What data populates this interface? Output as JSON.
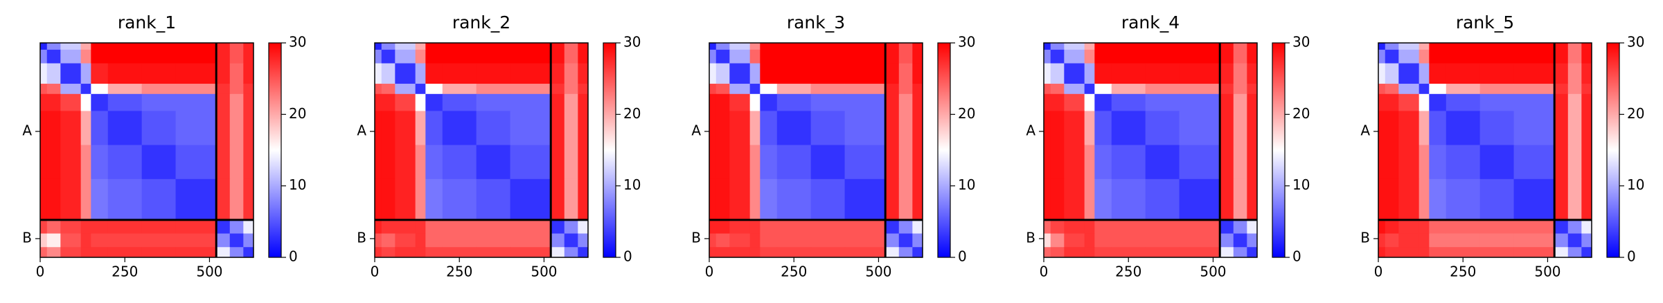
{
  "chart_data": [
    {
      "type": "heatmap",
      "title": "rank_1",
      "cmap": "bwr",
      "bins": [
        0,
        20,
        60,
        120,
        150,
        200,
        300,
        400,
        520,
        560,
        600,
        630
      ],
      "matrix": [
        [
          2,
          8,
          12,
          20,
          30,
          30,
          30,
          30,
          28,
          25,
          28
        ],
        [
          8,
          3,
          10,
          22,
          30,
          30,
          30,
          30,
          28,
          25,
          28
        ],
        [
          14,
          12,
          3,
          10,
          28,
          29,
          29,
          29,
          28,
          24,
          28
        ],
        [
          25,
          24,
          10,
          3,
          15,
          20,
          22,
          22,
          27,
          24,
          27
        ],
        [
          28,
          28,
          26,
          15,
          3,
          5,
          6,
          6,
          27,
          22,
          27
        ],
        [
          29,
          29,
          28,
          20,
          5,
          3,
          5,
          6,
          27,
          22,
          27
        ],
        [
          29,
          29,
          28,
          22,
          6,
          5,
          3,
          5,
          27,
          22,
          27
        ],
        [
          29,
          29,
          28,
          22,
          7,
          6,
          5,
          3,
          27,
          22,
          27
        ],
        [
          26,
          24,
          26,
          27,
          27,
          27,
          27,
          27,
          3,
          8,
          14
        ],
        [
          18,
          16,
          25,
          27,
          26,
          26,
          26,
          26,
          8,
          3,
          8
        ],
        [
          24,
          22,
          26,
          27,
          27,
          27,
          27,
          27,
          14,
          8,
          3
        ]
      ],
      "xlim": [
        0,
        630
      ],
      "ylim": [
        0,
        630
      ],
      "yaxis_inverted": true,
      "xticks": [
        0,
        250,
        500
      ],
      "yticks": [
        {
          "value": 260,
          "label": "A"
        },
        {
          "value": 575,
          "label": "B"
        }
      ],
      "chain_breaks": [
        520
      ],
      "clim": [
        0,
        30
      ],
      "cticks": [
        0,
        10,
        20,
        30
      ]
    },
    {
      "type": "heatmap",
      "title": "rank_2",
      "cmap": "bwr",
      "bins": [
        0,
        20,
        60,
        120,
        150,
        200,
        300,
        400,
        520,
        560,
        600,
        630
      ],
      "matrix": [
        [
          2,
          8,
          12,
          20,
          30,
          30,
          30,
          30,
          29,
          24,
          29
        ],
        [
          8,
          3,
          10,
          22,
          30,
          30,
          30,
          30,
          29,
          24,
          29
        ],
        [
          14,
          12,
          3,
          10,
          29,
          29,
          29,
          29,
          28,
          23,
          28
        ],
        [
          25,
          24,
          10,
          3,
          15,
          20,
          22,
          22,
          27,
          23,
          27
        ],
        [
          28,
          28,
          26,
          15,
          3,
          5,
          6,
          6,
          28,
          21,
          28
        ],
        [
          29,
          29,
          28,
          20,
          5,
          3,
          5,
          6,
          28,
          21,
          28
        ],
        [
          29,
          29,
          28,
          22,
          6,
          5,
          3,
          5,
          28,
          21,
          28
        ],
        [
          29,
          29,
          28,
          22,
          7,
          6,
          5,
          3,
          28,
          21,
          28
        ],
        [
          28,
          27,
          27,
          27,
          24,
          24,
          24,
          24,
          3,
          8,
          14
        ],
        [
          25,
          24,
          26,
          27,
          24,
          24,
          24,
          24,
          8,
          3,
          8
        ],
        [
          27,
          26,
          27,
          27,
          26,
          26,
          26,
          26,
          14,
          8,
          3
        ]
      ],
      "xlim": [
        0,
        630
      ],
      "ylim": [
        0,
        630
      ],
      "yaxis_inverted": true,
      "xticks": [
        0,
        250,
        500
      ],
      "yticks": [
        {
          "value": 260,
          "label": "A"
        },
        {
          "value": 575,
          "label": "B"
        }
      ],
      "chain_breaks": [
        520
      ],
      "clim": [
        0,
        30
      ],
      "cticks": [
        0,
        10,
        20,
        30
      ]
    },
    {
      "type": "heatmap",
      "title": "rank_3",
      "cmap": "bwr",
      "bins": [
        0,
        20,
        60,
        120,
        150,
        200,
        300,
        400,
        520,
        560,
        600,
        630
      ],
      "matrix": [
        [
          2,
          8,
          12,
          22,
          30,
          30,
          30,
          30,
          29,
          25,
          29
        ],
        [
          8,
          3,
          10,
          24,
          30,
          30,
          30,
          30,
          29,
          25,
          29
        ],
        [
          14,
          12,
          3,
          10,
          30,
          30,
          30,
          30,
          29,
          24,
          29
        ],
        [
          26,
          25,
          10,
          3,
          15,
          20,
          22,
          22,
          28,
          24,
          28
        ],
        [
          29,
          29,
          27,
          15,
          3,
          5,
          6,
          6,
          28,
          22,
          28
        ],
        [
          29,
          29,
          28,
          20,
          5,
          3,
          5,
          6,
          28,
          22,
          28
        ],
        [
          29,
          29,
          28,
          22,
          6,
          5,
          3,
          5,
          28,
          22,
          28
        ],
        [
          29,
          29,
          28,
          22,
          7,
          6,
          5,
          3,
          28,
          22,
          28
        ],
        [
          28,
          28,
          27,
          27,
          25,
          25,
          25,
          25,
          3,
          8,
          14
        ],
        [
          26,
          25,
          26,
          27,
          25,
          25,
          25,
          25,
          8,
          3,
          8
        ],
        [
          27,
          27,
          27,
          27,
          26,
          26,
          26,
          26,
          14,
          8,
          3
        ]
      ],
      "xlim": [
        0,
        630
      ],
      "ylim": [
        0,
        630
      ],
      "yaxis_inverted": true,
      "xticks": [
        0,
        250,
        500
      ],
      "yticks": [
        {
          "value": 260,
          "label": "A"
        },
        {
          "value": 575,
          "label": "B"
        }
      ],
      "chain_breaks": [
        520
      ],
      "clim": [
        0,
        30
      ],
      "cticks": [
        0,
        10,
        20,
        30
      ]
    },
    {
      "type": "heatmap",
      "title": "rank_4",
      "cmap": "bwr",
      "bins": [
        0,
        20,
        60,
        120,
        150,
        200,
        300,
        400,
        520,
        560,
        600,
        630
      ],
      "matrix": [
        [
          2,
          8,
          12,
          20,
          30,
          30,
          30,
          30,
          29,
          24,
          29
        ],
        [
          8,
          3,
          10,
          22,
          30,
          30,
          30,
          30,
          29,
          24,
          29
        ],
        [
          14,
          12,
          3,
          10,
          29,
          29,
          29,
          29,
          28,
          23,
          28
        ],
        [
          25,
          24,
          10,
          3,
          15,
          20,
          22,
          22,
          27,
          23,
          27
        ],
        [
          28,
          28,
          26,
          15,
          3,
          5,
          6,
          6,
          28,
          21,
          28
        ],
        [
          29,
          29,
          28,
          20,
          5,
          3,
          5,
          6,
          28,
          21,
          28
        ],
        [
          29,
          29,
          28,
          22,
          6,
          5,
          3,
          5,
          28,
          21,
          28
        ],
        [
          29,
          29,
          28,
          22,
          7,
          6,
          5,
          3,
          28,
          21,
          28
        ],
        [
          24,
          26,
          27,
          27,
          25,
          25,
          25,
          25,
          3,
          8,
          14
        ],
        [
          17,
          22,
          26,
          27,
          25,
          25,
          25,
          25,
          8,
          3,
          8
        ],
        [
          24,
          25,
          27,
          27,
          26,
          26,
          26,
          26,
          14,
          8,
          3
        ]
      ],
      "xlim": [
        0,
        630
      ],
      "ylim": [
        0,
        630
      ],
      "yaxis_inverted": true,
      "xticks": [
        0,
        250,
        500
      ],
      "yticks": [
        {
          "value": 260,
          "label": "A"
        },
        {
          "value": 575,
          "label": "B"
        }
      ],
      "chain_breaks": [
        520
      ],
      "clim": [
        0,
        30
      ],
      "cticks": [
        0,
        10,
        20,
        30
      ]
    },
    {
      "type": "heatmap",
      "title": "rank_5",
      "cmap": "bwr",
      "bins": [
        0,
        20,
        60,
        120,
        150,
        200,
        300,
        400,
        520,
        560,
        600,
        630
      ],
      "matrix": [
        [
          2,
          8,
          12,
          20,
          30,
          30,
          30,
          30,
          29,
          23,
          29
        ],
        [
          8,
          3,
          10,
          22,
          30,
          30,
          30,
          30,
          29,
          23,
          29
        ],
        [
          14,
          12,
          3,
          10,
          29,
          29,
          29,
          29,
          28,
          22,
          28
        ],
        [
          25,
          24,
          10,
          3,
          15,
          20,
          22,
          22,
          27,
          22,
          27
        ],
        [
          28,
          28,
          26,
          15,
          3,
          5,
          6,
          6,
          28,
          20,
          28
        ],
        [
          29,
          29,
          28,
          20,
          5,
          3,
          5,
          6,
          28,
          20,
          28
        ],
        [
          29,
          29,
          28,
          22,
          6,
          5,
          3,
          5,
          28,
          20,
          28
        ],
        [
          29,
          29,
          28,
          22,
          7,
          6,
          5,
          3,
          28,
          20,
          28
        ],
        [
          29,
          28,
          27,
          27,
          24,
          24,
          24,
          24,
          3,
          8,
          14
        ],
        [
          27,
          26,
          27,
          27,
          23,
          23,
          23,
          23,
          8,
          3,
          8
        ],
        [
          28,
          27,
          27,
          27,
          25,
          25,
          25,
          25,
          14,
          8,
          3
        ]
      ],
      "xlim": [
        0,
        630
      ],
      "ylim": [
        0,
        630
      ],
      "yaxis_inverted": true,
      "xticks": [
        0,
        250,
        500
      ],
      "yticks": [
        {
          "value": 260,
          "label": "A"
        },
        {
          "value": 575,
          "label": "B"
        }
      ],
      "chain_breaks": [
        520
      ],
      "clim": [
        0,
        30
      ],
      "cticks": [
        0,
        10,
        20,
        30
      ]
    }
  ]
}
